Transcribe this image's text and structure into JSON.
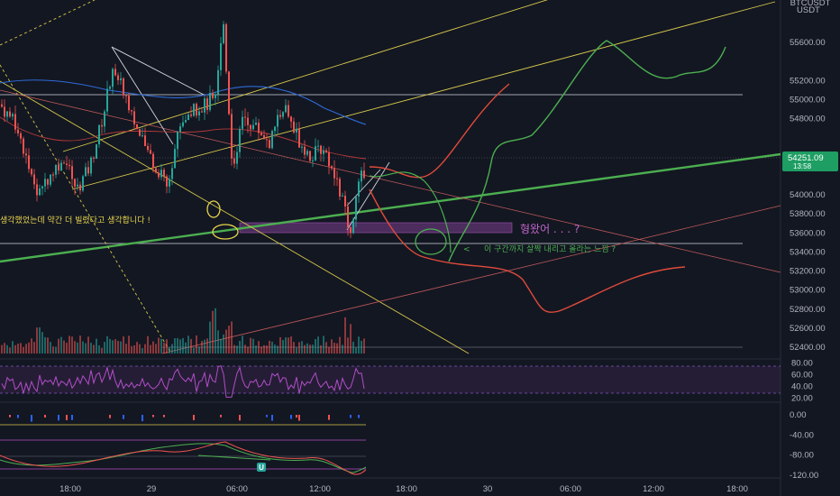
{
  "chart_data": [
    {
      "type": "candlestick",
      "title": "",
      "instrument_header": "BTCUSDT",
      "price_unit": "USDT",
      "current_price": "54251.09",
      "countdown": "13:58",
      "y_ticks": [
        "55600.00",
        "55200.00",
        "55000.00",
        "54800.00",
        "54400.00",
        "54000.00",
        "53800.00",
        "53600.00",
        "53400.00",
        "53200.00",
        "53000.00",
        "52800.00",
        "52600.00",
        "52400.00"
      ],
      "y_tick_values": [
        55600,
        55200,
        55000,
        54800,
        54400,
        54000,
        53800,
        53600,
        53400,
        53200,
        53000,
        52800,
        52600,
        52400
      ],
      "ylim": [
        52300,
        55800
      ],
      "x_ticks": [
        "18:00",
        "29",
        "06:00",
        "12:00",
        "18:00",
        "30",
        "06:00",
        "12:00",
        "18:00"
      ],
      "horizontal_levels": [
        54880,
        53380,
        52320
      ],
      "last_close_level": 54251,
      "highlight_zone": [
        53490,
        53590
      ],
      "annotations": {
        "yellow_note": "생각했었는데 약간 더 빌렸다고 생각합니다 !",
        "purple_note": "형왔어 . . . ?",
        "green_note": "이 구간까지 살짝 내리고 올라는 느낌 ?"
      },
      "legend": "none",
      "grid": false
    },
    {
      "type": "oscillator",
      "y_ticks": [
        "80.00",
        "60.00",
        "40.00",
        "20.00"
      ],
      "y_tick_values": [
        80,
        60,
        40,
        20
      ],
      "ylim": [
        15,
        85
      ],
      "bands": [
        70,
        30
      ]
    },
    {
      "type": "oscillator",
      "y_ticks": [
        "0.00",
        "-40.00",
        "-80.00",
        "-120.00"
      ],
      "y_tick_values": [
        0,
        -40,
        -80,
        -120
      ],
      "ylim": [
        -130,
        10
      ],
      "marker_label": "U"
    }
  ],
  "colors": {
    "background": "#131722",
    "bull": "#26a69a",
    "bear": "#ef5350",
    "green_line": "#4caf50",
    "yellow_line": "#d7c94a",
    "purple_zone": "#7b3f8f",
    "blue_ma": "#2f6bd8",
    "price_tag_green": "#1e9e63",
    "hline": "#d1d4dc"
  }
}
